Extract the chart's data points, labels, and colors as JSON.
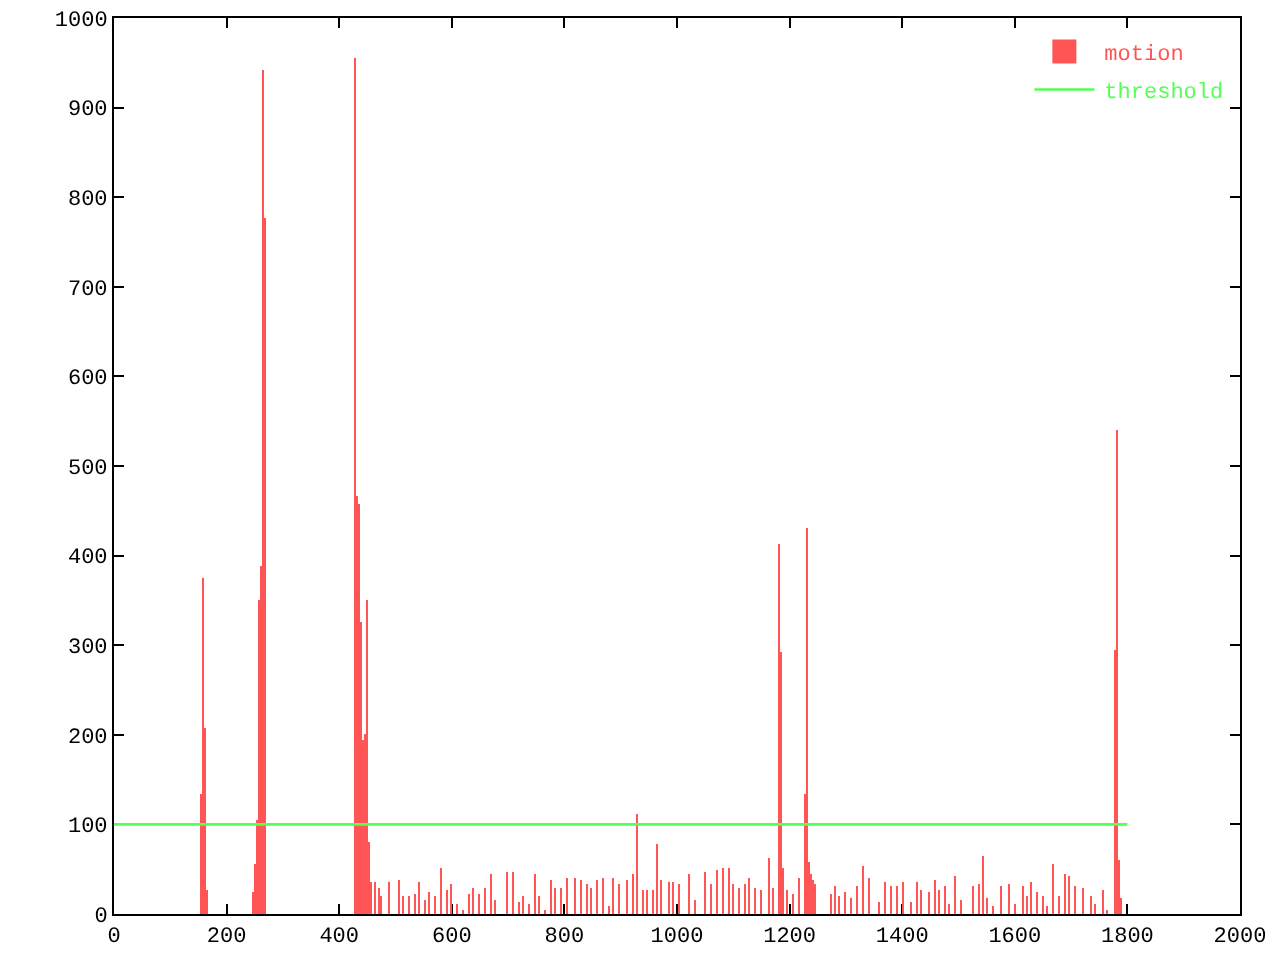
{
  "chart_data": {
    "type": "bar",
    "xlim": [
      0,
      2000
    ],
    "ylim": [
      0,
      1000
    ],
    "xticks": [
      0,
      200,
      400,
      600,
      800,
      1000,
      1200,
      1400,
      1600,
      1800,
      2000
    ],
    "yticks": [
      0,
      100,
      200,
      300,
      400,
      500,
      600,
      700,
      800,
      900,
      1000
    ],
    "legend": "top right",
    "series": [
      {
        "name": "motion",
        "color": "#ff5555",
        "x": [
          154,
          158,
          161,
          165,
          246,
          250,
          253,
          257,
          260,
          264,
          268,
          428,
          431,
          435,
          438,
          442,
          445,
          449,
          452,
          456,
          463,
          470,
          474,
          490,
          505,
          514,
          524,
          533,
          542,
          552,
          561,
          571,
          581,
          591,
          600,
          610,
          619,
          629,
          639,
          649,
          658,
          669,
          678,
          699,
          709,
          718,
          728,
          737,
          747,
          756,
          766,
          775,
          784,
          794,
          803,
          820,
          829,
          839,
          847,
          858,
          867,
          879,
          888,
          898,
          912,
          921,
          928,
          938,
          947,
          957,
          966,
          973,
          985,
          992,
          1004,
          1020,
          1032,
          1050,
          1062,
          1072,
          1082,
          1091,
          1101,
          1110,
          1120,
          1129,
          1138,
          1148,
          1162,
          1171,
          1181,
          1184,
          1188,
          1197,
          1207,
          1216,
          1226,
          1230,
          1233,
          1237,
          1240,
          1244,
          1272,
          1280,
          1288,
          1300,
          1310,
          1319,
          1330,
          1341,
          1359,
          1369,
          1380,
          1392,
          1403,
          1415,
          1425,
          1433,
          1448,
          1457,
          1466,
          1475,
          1484,
          1494,
          1504,
          1527,
          1535,
          1543,
          1550,
          1562,
          1574,
          1591,
          1601,
          1613,
          1621,
          1630,
          1639,
          1650,
          1657,
          1669,
          1679,
          1689,
          1697,
          1706,
          1720,
          1736,
          1744,
          1756,
          1765,
          1777,
          1781,
          1784,
          1788
        ],
        "values": [
          134,
          375,
          208,
          27,
          25,
          56,
          106,
          351,
          388,
          941,
          777,
          956,
          466,
          458,
          325,
          195,
          202,
          351,
          80,
          36,
          36,
          28,
          21,
          36,
          38,
          20,
          20,
          23,
          36,
          16,
          25,
          21,
          52,
          27,
          34,
          12,
          5,
          23,
          30,
          23,
          30,
          45,
          16,
          46,
          46,
          14,
          20,
          12,
          45,
          21,
          5,
          38,
          30,
          30,
          41,
          41,
          38,
          34,
          30,
          38,
          41,
          9,
          41,
          34,
          38,
          45,
          112,
          27,
          27,
          27,
          78,
          38,
          36,
          36,
          34,
          45,
          16,
          46,
          34,
          49,
          52,
          52,
          34,
          30,
          34,
          41,
          30,
          27,
          63,
          30,
          412,
          293,
          52,
          27,
          23,
          41,
          134,
          431,
          58,
          45,
          38,
          33,
          23,
          31,
          20,
          25,
          18,
          31,
          54,
          40,
          14,
          36,
          31,
          31,
          36,
          14,
          36,
          27,
          25,
          38,
          27,
          31,
          12,
          42,
          16,
          31,
          34,
          65,
          18,
          9,
          31,
          34,
          12,
          31,
          20,
          36,
          25,
          20,
          9,
          55,
          20,
          45,
          42,
          31,
          28,
          20,
          12,
          27,
          5,
          295,
          541,
          60,
          18
        ]
      },
      {
        "name": "threshold",
        "color": "#55ff55",
        "type": "line",
        "x": [
          0,
          1800
        ],
        "values": [
          100,
          100
        ],
        "line_style": "solid",
        "marker": "none"
      }
    ]
  }
}
